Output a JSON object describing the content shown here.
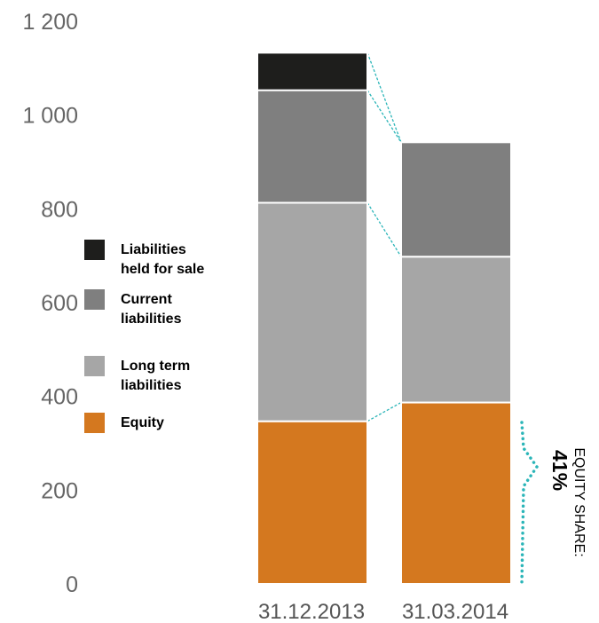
{
  "chart_data": {
    "type": "bar",
    "stacked": true,
    "categories": [
      "31.12.2013",
      "31.03.2014"
    ],
    "series": [
      {
        "name": "Equity",
        "color": "#D4781F",
        "values": [
          347,
          387
        ]
      },
      {
        "name": "Long term liabilities",
        "color": "#A6A6A6",
        "values": [
          466,
          311
        ]
      },
      {
        "name": "Current liabilities",
        "color": "#7F7F7F",
        "values": [
          240,
          244
        ]
      },
      {
        "name": "Liabilities held for sale",
        "color": "#1E1E1C",
        "values": [
          80,
          0
        ]
      }
    ],
    "yticks": [
      "0",
      "200",
      "400",
      "600",
      "800",
      "1 000",
      "1 200"
    ],
    "ylim": [
      0,
      1200
    ],
    "legend_position": "left",
    "connector_color": "#2BB5B8",
    "annotation": {
      "label": "EQUITY SHARE:",
      "value": "41%"
    }
  }
}
